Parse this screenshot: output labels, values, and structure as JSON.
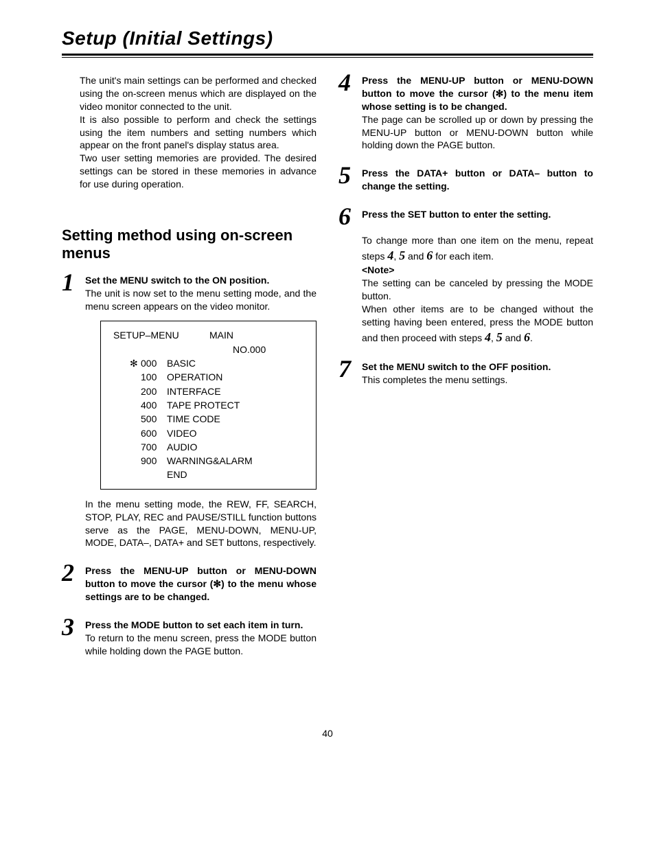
{
  "page_title": "Setup (Initial Settings)",
  "intro_paragraphs": [
    "The unit's main settings can be performed and checked using the on-screen menus which are displayed on the video monitor connected to the unit.",
    "It is also possible to perform and check the settings using the item numbers and setting numbers which appear on the front panel's display status area.",
    "Two user setting memories are provided.  The desired settings can be stored in these memories in advance for use during operation."
  ],
  "section_heading": "Setting method using on-screen menus",
  "cursor_symbol": "✻",
  "menu_box": {
    "header_left": "SETUP–MENU",
    "header_right": "MAIN",
    "no_line": "NO.000",
    "rows": [
      {
        "cursor": true,
        "code": "000",
        "label": "BASIC"
      },
      {
        "cursor": false,
        "code": "100",
        "label": "OPERATION"
      },
      {
        "cursor": false,
        "code": "200",
        "label": "INTERFACE"
      },
      {
        "cursor": false,
        "code": "400",
        "label": "TAPE PROTECT"
      },
      {
        "cursor": false,
        "code": "500",
        "label": "TIME CODE"
      },
      {
        "cursor": false,
        "code": "600",
        "label": "VIDEO"
      },
      {
        "cursor": false,
        "code": "700",
        "label": "AUDIO"
      },
      {
        "cursor": false,
        "code": "900",
        "label": "WARNING&ALARM"
      },
      {
        "cursor": false,
        "code": "",
        "label": "END"
      }
    ]
  },
  "steps_left": {
    "s1": {
      "num": "1",
      "bold": "Set the MENU switch to the ON position.",
      "body1": "The unit is now set to the menu setting mode, and the menu screen appears on the video monitor.",
      "body2": "In the menu setting mode, the REW, FF, SEARCH, STOP, PLAY, REC and PAUSE/STILL function buttons serve as the PAGE, MENU-DOWN, MENU-UP, MODE, DATA–, DATA+ and SET buttons, respectively."
    },
    "s2": {
      "num": "2",
      "bold_a": "Press the MENU-UP button or MENU-DOWN button to move the cursor (",
      "bold_b": ") to the menu whose settings are to be changed."
    },
    "s3": {
      "num": "3",
      "bold": "Press the MODE button to set each item in turn.",
      "body": "To return to the menu screen, press the MODE button while holding down the PAGE button."
    }
  },
  "steps_right": {
    "s4": {
      "num": "4",
      "bold_a": "Press the MENU-UP button or MENU-DOWN button to move the cursor (",
      "bold_b": ") to the menu item whose setting is to be changed.",
      "body": "The page can be scrolled up or down by pressing the MENU-UP button or MENU-DOWN button while holding down the PAGE button."
    },
    "s5": {
      "num": "5",
      "bold": "Press the DATA+ button or DATA– button to change the setting."
    },
    "s6": {
      "num": "6",
      "bold": "Press the SET button to enter the setting.",
      "trail_a": "To change more than one item on the menu, repeat steps ",
      "n4": "4",
      "c1": ", ",
      "n5": "5",
      "c2": " and ",
      "n6": "6",
      "trail_b": " for each item.",
      "note_label": "<Note>",
      "note_body1": "The setting can be canceled by pressing the MODE button.",
      "note_body2a": "When other items are to be changed without the setting having been entered, press the MODE button and then proceed with steps ",
      "note_body2b": "."
    },
    "s7": {
      "num": "7",
      "bold": "Set the MENU switch to the OFF position.",
      "body": "This completes the menu settings."
    }
  },
  "page_number": "40"
}
